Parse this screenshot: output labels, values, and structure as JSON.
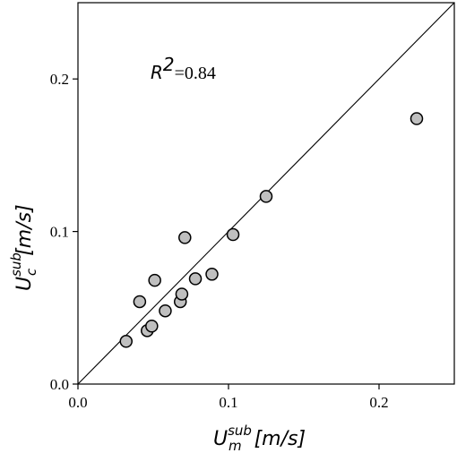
{
  "chart_data": {
    "type": "scatter",
    "xlabel": {
      "base": "U",
      "sup": "sub",
      "sub": "m",
      "unit": "[m/s]"
    },
    "ylabel": {
      "base": "U",
      "sup": "sub",
      "sub": "c",
      "unit": "[m/s]"
    },
    "xlim": [
      0.0,
      0.25
    ],
    "ylim": [
      0.0,
      0.25
    ],
    "xticks": [
      0.0,
      0.1,
      0.2
    ],
    "yticks": [
      0.0,
      0.1,
      0.2
    ],
    "xtick_labels": [
      "0.0",
      "0.1",
      "0.2"
    ],
    "ytick_labels": [
      "0.0",
      "0.1",
      "0.2"
    ],
    "annotation": {
      "r": "R",
      "sup": "2",
      "value": "=0.84"
    },
    "reference_line": "y = x",
    "grid": false,
    "points": [
      {
        "x": 0.032,
        "y": 0.028
      },
      {
        "x": 0.041,
        "y": 0.054
      },
      {
        "x": 0.046,
        "y": 0.035
      },
      {
        "x": 0.049,
        "y": 0.038
      },
      {
        "x": 0.051,
        "y": 0.068
      },
      {
        "x": 0.058,
        "y": 0.048
      },
      {
        "x": 0.068,
        "y": 0.054
      },
      {
        "x": 0.069,
        "y": 0.059
      },
      {
        "x": 0.071,
        "y": 0.096
      },
      {
        "x": 0.078,
        "y": 0.069
      },
      {
        "x": 0.089,
        "y": 0.072
      },
      {
        "x": 0.103,
        "y": 0.098
      },
      {
        "x": 0.125,
        "y": 0.123
      },
      {
        "x": 0.225,
        "y": 0.174
      }
    ]
  }
}
